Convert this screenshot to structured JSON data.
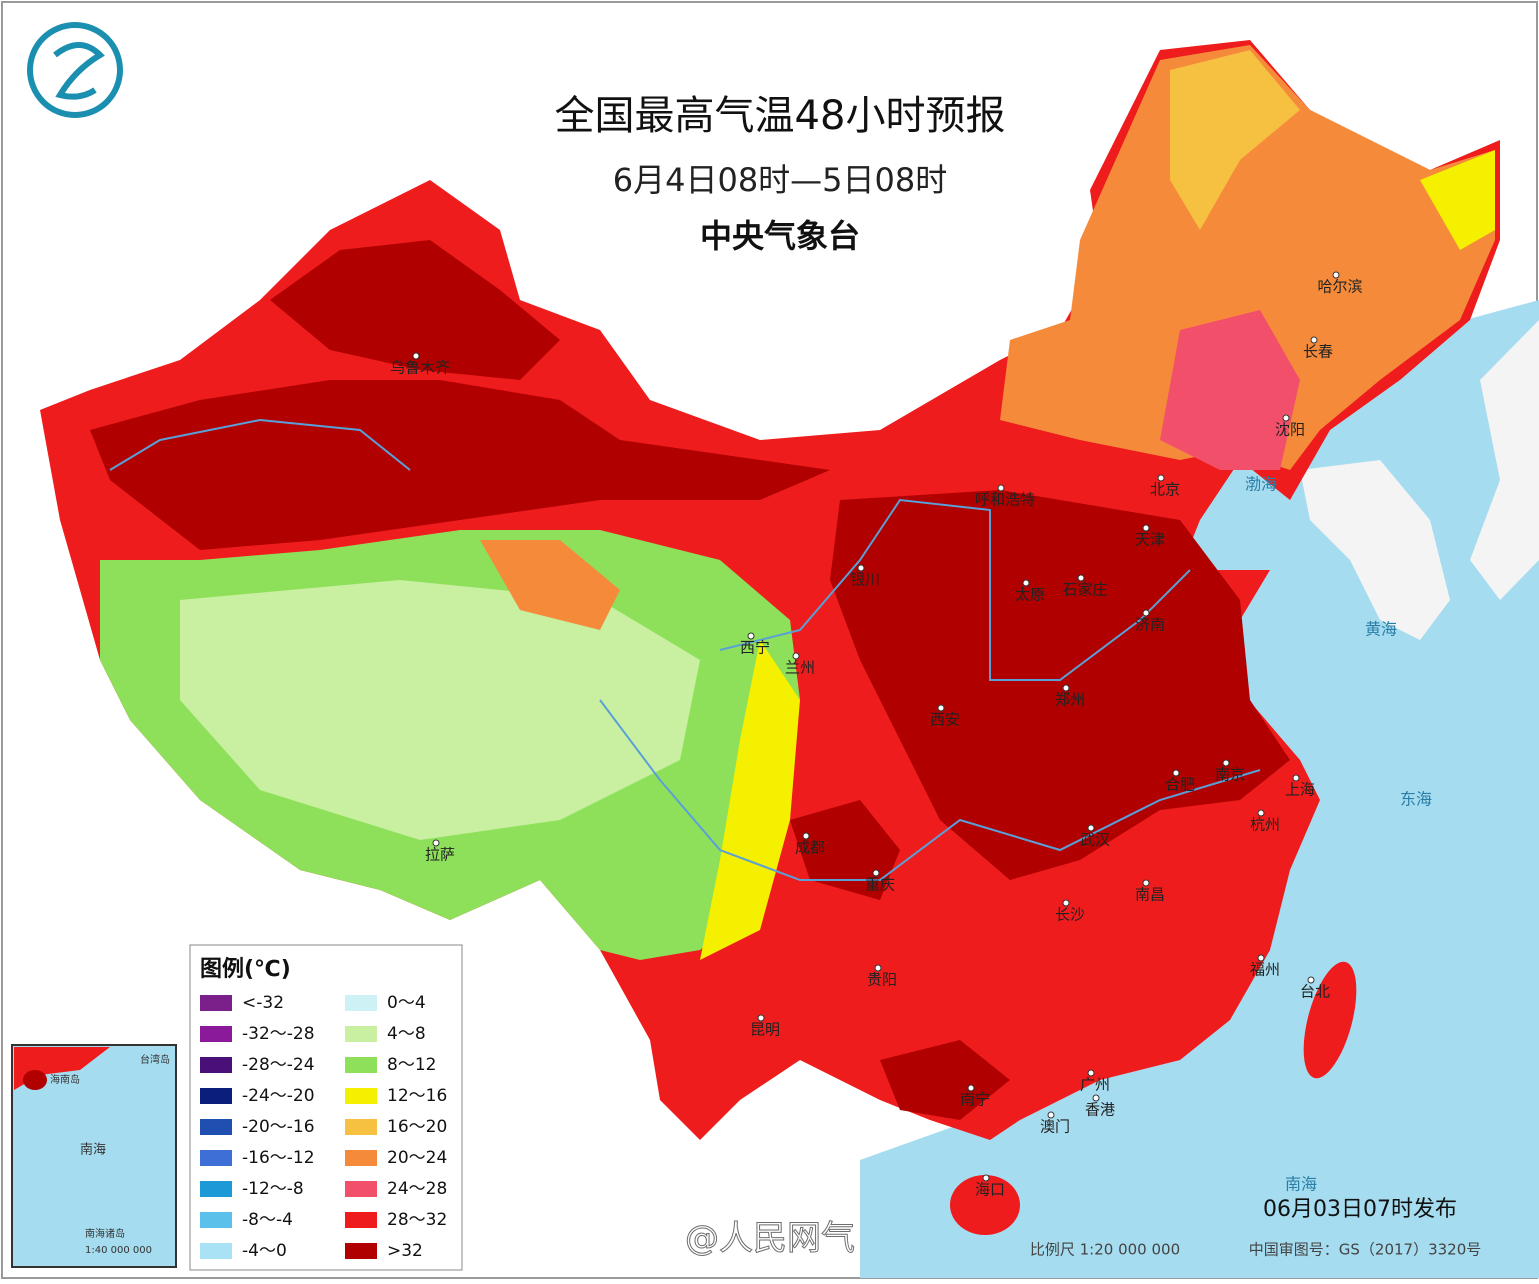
{
  "header": {
    "title": "全国最高气温48小时预报",
    "subtitle": "6月4日08时—5日08时",
    "issuer": "中央气象台"
  },
  "legend": {
    "title": "图例(℃)",
    "items": [
      {
        "label": "<-32",
        "color": "#7b1f8a"
      },
      {
        "label": "-32～-28",
        "color": "#8a1a9a"
      },
      {
        "label": "-28～-24",
        "color": "#4b0f7a"
      },
      {
        "label": "-24～-20",
        "color": "#0a1e7a"
      },
      {
        "label": "-20～-16",
        "color": "#1f4fb0"
      },
      {
        "label": "-16～-12",
        "color": "#3d6fd6"
      },
      {
        "label": "-12～-8",
        "color": "#1c9ad8"
      },
      {
        "label": "-8～-4",
        "color": "#5bc0ea"
      },
      {
        "label": "-4～0",
        "color": "#a8e2f4"
      },
      {
        "label": "0～4",
        "color": "#cdf1f5"
      },
      {
        "label": "4～8",
        "color": "#c8f0a0"
      },
      {
        "label": "8～12",
        "color": "#8ee05a"
      },
      {
        "label": "12～16",
        "color": "#f4f000"
      },
      {
        "label": "16～20",
        "color": "#f6c040"
      },
      {
        "label": "20～24",
        "color": "#f58a3a"
      },
      {
        "label": "24～28",
        "color": "#f2506a"
      },
      {
        "label": "28～32",
        "color": "#ee1c1c"
      },
      {
        "label": ">32",
        "color": "#b00000"
      }
    ]
  },
  "cities": [
    "乌鲁木齐",
    "哈尔滨",
    "长春",
    "沈阳",
    "北京",
    "天津",
    "呼和浩特",
    "银川",
    "太原",
    "石家庄",
    "济南",
    "西宁",
    "兰州",
    "西安",
    "郑州",
    "合肥",
    "南京",
    "上海",
    "杭州",
    "武汉",
    "成都",
    "重庆",
    "长沙",
    "南昌",
    "福州",
    "台北",
    "贵阳",
    "昆明",
    "南宁",
    "广州",
    "香港",
    "澳门",
    "海口",
    "拉萨"
  ],
  "seas": [
    "渤海",
    "黄海",
    "东海",
    "南海"
  ],
  "inset": {
    "labels": [
      "南海",
      "台湾岛",
      "海南岛",
      "南海诸岛"
    ],
    "scale": "1:40 000 000"
  },
  "footer": {
    "issued": "06月03日07时发布",
    "scale": "比例尺 1:20 000 000",
    "map_number": "中国审图号：GS（2017）3320号"
  },
  "watermark": "@人民网气"
}
